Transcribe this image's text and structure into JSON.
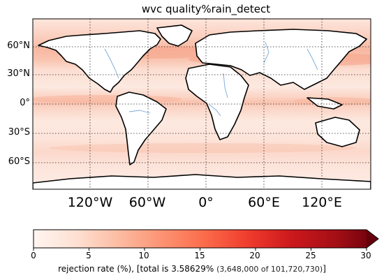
{
  "title": "wvc quality%rain_detect",
  "map": {
    "lat_labels": [
      "60°N",
      "30°N",
      "0°",
      "30°S",
      "60°S"
    ],
    "lon_labels": [
      "120°W",
      "60°W",
      "0°",
      "60°E",
      "120°E"
    ],
    "grid": true,
    "projection": "plate carree",
    "field": "rejection rate (%)",
    "colormap": "Reds"
  },
  "colorbar": {
    "ticks": [
      "0",
      "5",
      "10",
      "15",
      "20",
      "25",
      "30"
    ],
    "min": 0,
    "max": 30,
    "extend": "max",
    "label_main": "rejection rate (%), [total is",
    "label_value": "3.58629%",
    "label_detail": "(3,648,000 of 101,720,730)",
    "label_close": "]"
  },
  "colors": {
    "background_ocean": "#fde9e0",
    "land": "#ffffff",
    "coast": "#000000",
    "rivers": "#7aa7d6",
    "band_high": "#f5a48a",
    "colormap_start": "#fff5f0",
    "colormap_end": "#67000d"
  }
}
